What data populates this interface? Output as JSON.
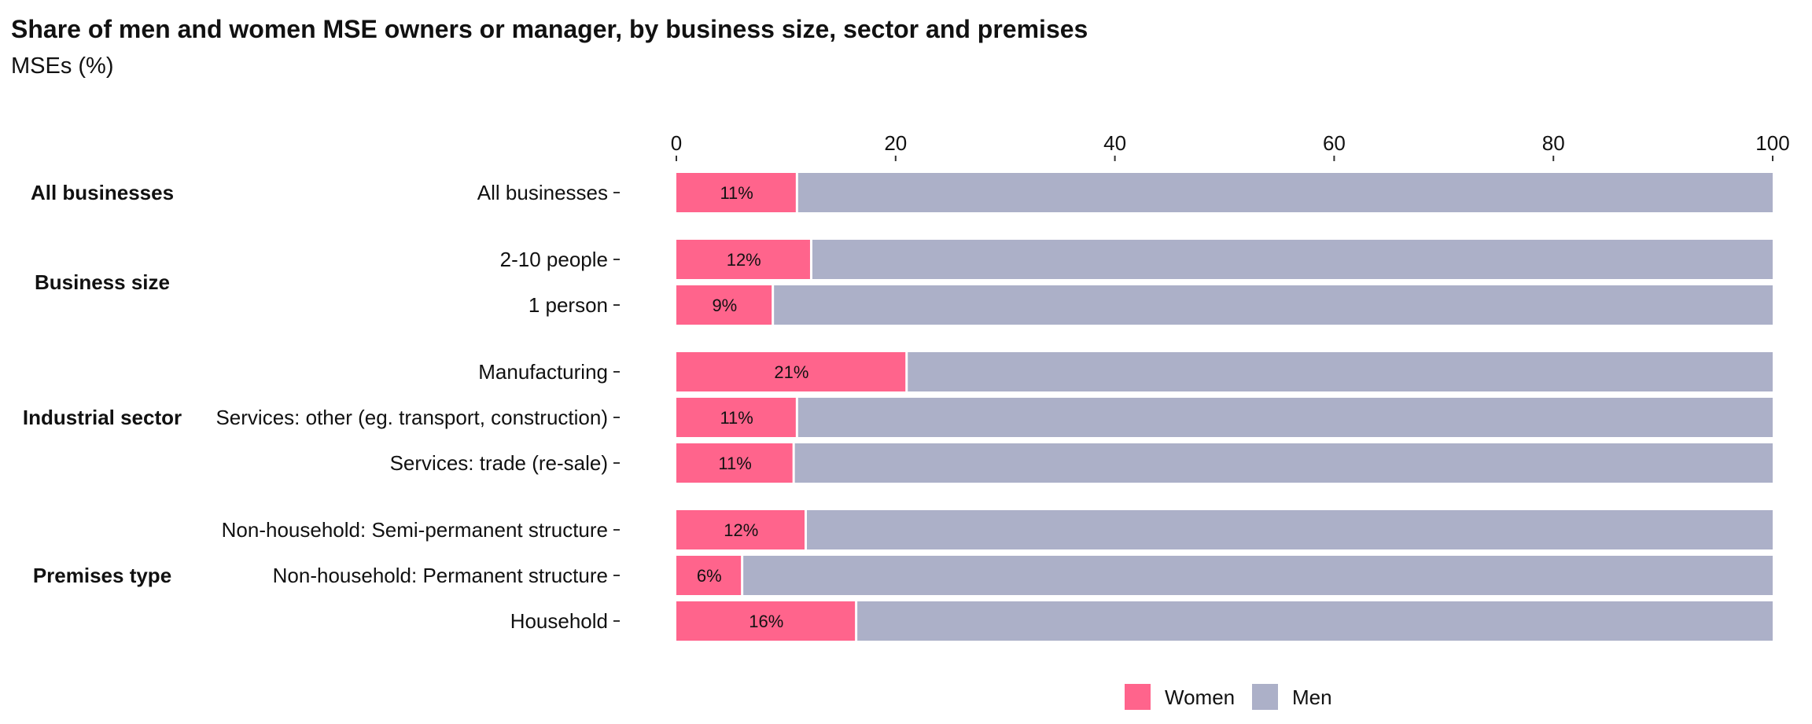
{
  "chart_data": {
    "type": "bar",
    "orientation": "horizontal",
    "stacked": true,
    "title": "Share of men and women MSE owners or manager, by business size, sector and premises",
    "subtitle": "MSEs (%)",
    "xlim": [
      0,
      100
    ],
    "x_ticks": [
      "0",
      "20",
      "40",
      "60",
      "80",
      "100"
    ],
    "x_axis_position": "top",
    "grid": false,
    "legend_position": "bottom",
    "legend": [
      "Women",
      "Men"
    ],
    "colors": {
      "Women": "#ff648c",
      "Men": "#acb0c8"
    },
    "groups": [
      {
        "name": "All businesses",
        "categories": [
          {
            "label": "All businesses",
            "women": 11,
            "men": 89,
            "data_label": "11%"
          }
        ]
      },
      {
        "name": "Business size",
        "categories": [
          {
            "label": "2-10 people",
            "women": 12.3,
            "men": 87.7,
            "data_label": "12%"
          },
          {
            "label": "1 person",
            "women": 8.8,
            "men": 91.2,
            "data_label": "9%"
          }
        ]
      },
      {
        "name": "Industrial sector",
        "categories": [
          {
            "label": "Manufacturing",
            "women": 21,
            "men": 79,
            "data_label": "21%"
          },
          {
            "label": "Services: other (eg. transport, construction)",
            "women": 11,
            "men": 89,
            "data_label": "11%"
          },
          {
            "label": "Services: trade (re-sale)",
            "women": 10.7,
            "men": 89.3,
            "data_label": "11%"
          }
        ]
      },
      {
        "name": "Premises type",
        "categories": [
          {
            "label": "Non-household: Semi-permanent structure",
            "women": 11.8,
            "men": 88.2,
            "data_label": "12%"
          },
          {
            "label": "Non-household: Permanent structure",
            "women": 6,
            "men": 94,
            "data_label": "6%"
          },
          {
            "label": "Household",
            "women": 16.4,
            "men": 83.6,
            "data_label": "16%"
          }
        ]
      }
    ]
  }
}
